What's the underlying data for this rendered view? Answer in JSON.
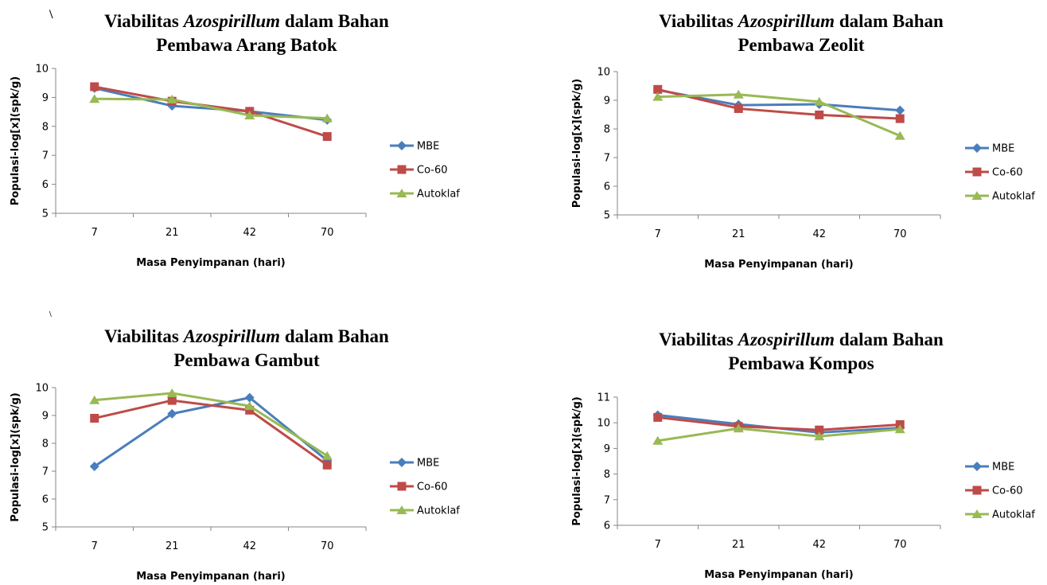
{
  "colors": {
    "MBE": "#4a7ebb",
    "Co-60": "#be4b48",
    "Autoklaf": "#98b954",
    "axis": "#868686"
  },
  "stray_marks": [
    "\\",
    "\\"
  ],
  "chart_data": [
    {
      "type": "line",
      "title_pre": "Viabilitas ",
      "title_italic": "Azospirillum",
      "title_post": " dalam Bahan",
      "title_line2": "Pembawa Arang Batok",
      "xlabel": "Masa Penyimpanan (hari)",
      "ylabel": "Populasi-log[x](spk/g)",
      "categories": [
        "7",
        "21",
        "42",
        "70"
      ],
      "ylim": [
        5,
        10
      ],
      "yticks": [
        "5",
        "6",
        "7",
        "8",
        "9",
        "10"
      ],
      "legend": "right",
      "series": [
        {
          "name": "MBE",
          "marker": "diamond",
          "values": [
            9.32,
            8.71,
            8.52,
            8.22
          ]
        },
        {
          "name": "Co-60",
          "marker": "square",
          "values": [
            9.37,
            8.87,
            8.52,
            7.65
          ]
        },
        {
          "name": "Autoklaf",
          "marker": "triangle",
          "values": [
            8.95,
            8.93,
            8.38,
            8.28
          ]
        }
      ]
    },
    {
      "type": "line",
      "title_pre": "Viabilitas ",
      "title_italic": "Azospirillum",
      "title_post": " dalam Bahan",
      "title_line2": "Pembawa Zeolit",
      "xlabel": "Masa Penyimpanan (hari)",
      "ylabel": "Populasi-log[x](spk/g)",
      "categories": [
        "7",
        "21",
        "42",
        "70"
      ],
      "ylim": [
        5,
        10
      ],
      "yticks": [
        "5",
        "6",
        "7",
        "8",
        "9",
        "10"
      ],
      "legend": "right",
      "series": [
        {
          "name": "MBE",
          "marker": "diamond",
          "values": [
            9.36,
            8.83,
            8.86,
            8.65
          ]
        },
        {
          "name": "Co-60",
          "marker": "square",
          "values": [
            9.38,
            8.71,
            8.49,
            8.36
          ]
        },
        {
          "name": "Autoklaf",
          "marker": "triangle",
          "values": [
            9.12,
            9.2,
            8.95,
            7.76
          ]
        }
      ]
    },
    {
      "type": "line",
      "title_pre": "Viabilitas ",
      "title_italic": "Azospirillum",
      "title_post": " dalam Bahan",
      "title_line2": "Pembawa Gambut",
      "xlabel": "Masa Penyimpanan (hari)",
      "ylabel": "Populasi-log[x](spk/g)",
      "categories": [
        "7",
        "21",
        "42",
        "70"
      ],
      "ylim": [
        5,
        10
      ],
      "yticks": [
        "5",
        "6",
        "7",
        "8",
        "9",
        "10"
      ],
      "legend": "right",
      "series": [
        {
          "name": "MBE",
          "marker": "diamond",
          "values": [
            7.17,
            9.06,
            9.64,
            7.38
          ]
        },
        {
          "name": "Co-60",
          "marker": "square",
          "values": [
            8.9,
            9.54,
            9.19,
            7.22
          ]
        },
        {
          "name": "Autoklaf",
          "marker": "triangle",
          "values": [
            9.55,
            9.8,
            9.34,
            7.55
          ]
        }
      ]
    },
    {
      "type": "line",
      "title_pre": "Viabilitas ",
      "title_italic": "Azospirillum",
      "title_post": " dalam Bahan",
      "title_line2": "Pembawa Kompos",
      "xlabel": "Masa Penyimpanan (hari)",
      "ylabel": "Populasi-log[x](spk/g)",
      "categories": [
        "7",
        "21",
        "42",
        "70"
      ],
      "ylim": [
        6,
        11
      ],
      "yticks": [
        "6",
        "7",
        "8",
        "9",
        "10",
        "11"
      ],
      "legend": "right",
      "series": [
        {
          "name": "MBE",
          "marker": "diamond",
          "values": [
            10.3,
            9.95,
            9.62,
            9.8
          ]
        },
        {
          "name": "Co-60",
          "marker": "square",
          "values": [
            10.21,
            9.86,
            9.72,
            9.93
          ]
        },
        {
          "name": "Autoklaf",
          "marker": "triangle",
          "values": [
            9.3,
            9.78,
            9.47,
            9.75
          ]
        }
      ]
    }
  ]
}
